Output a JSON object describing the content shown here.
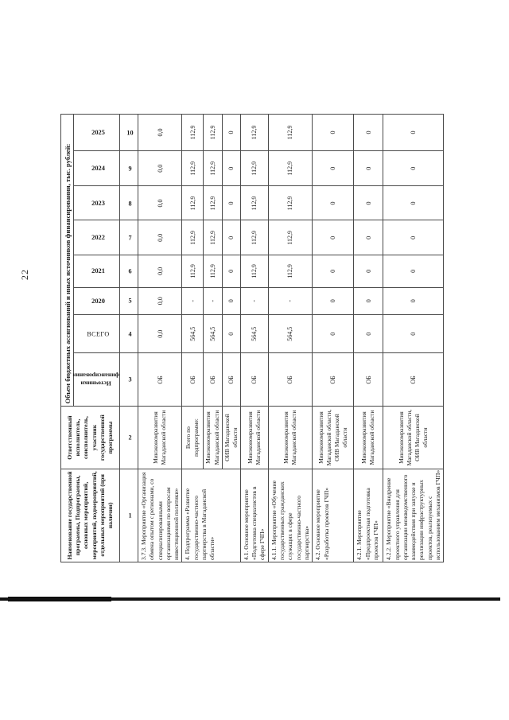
{
  "page": {
    "number": "22"
  },
  "table": {
    "financing_header": "Объем бюджетных ассигнований и иных источников финансирования, тыс. рублей:",
    "col1_header": "Наименование государственной программы, Подпрограммы, основных мероприятий, мероприятий, подмероприятий, отдельных мероприятий (при наличии)",
    "col2_header": "Ответственный исполнитель, соисполнитель, участник государственной программы",
    "col3_header": "Источники финансирования",
    "col4_header": "ВСЕГО",
    "years": [
      "2020",
      "2021",
      "2022",
      "2023",
      "2024",
      "2025"
    ],
    "column_numbers": [
      "1",
      "2",
      "3",
      "4",
      "5",
      "6",
      "7",
      "8",
      "9",
      "10"
    ],
    "rows": [
      {
        "name": "3.7.3. Мероприятие «Организация обмена опытом с регионами, со специализированными организациями по вопросам инвестиционной политики»",
        "name_rowspan": 1,
        "executor": "Минэкономразвития Магаданской области",
        "source": "ОБ",
        "total": "0,0",
        "values": [
          "0,0",
          "0,0",
          "0,0",
          "0,0",
          "0,0",
          "0,0"
        ]
      },
      {
        "name": "4. Подпрограмма «Развитие государственно-частного партнерства в Магаданской области»",
        "name_rowspan": 3,
        "executor": "Всего по подпрограмме:",
        "source": "ОБ",
        "total": "564,5",
        "values": [
          "-",
          "112,9",
          "112,9",
          "112,9",
          "112,9",
          "112,9"
        ]
      },
      {
        "name": null,
        "executor": "Минэкономразвития Магаданской области",
        "source": "ОБ",
        "total": "564,5",
        "values": [
          "-",
          "112,9",
          "112,9",
          "112,9",
          "112,9",
          "112,9"
        ]
      },
      {
        "name": null,
        "executor": "ОИВ Магаданской области",
        "source": "ОБ",
        "total": "0",
        "values": [
          "0",
          "0",
          "0",
          "0",
          "0",
          "0"
        ]
      },
      {
        "name": "4.1. Основное мероприятие «Подготовка специалистов в сфере ГЧП»",
        "name_rowspan": 1,
        "executor": "Минэкономразвития Магаданской области",
        "source": "ОБ",
        "total": "564,5",
        "values": [
          "-",
          "112,9",
          "112,9",
          "112,9",
          "112,9",
          "112,9"
        ]
      },
      {
        "name": "4.1.1. Мероприятие «Обучение государственных гражданских служащих в сфере государственно-частного партнерства»",
        "name_rowspan": 1,
        "executor": "Минэкономразвития Магаданской области",
        "source": "ОБ",
        "total": "564,5",
        "values": [
          "-",
          "112,9",
          "112,9",
          "112,9",
          "112,9",
          "112,9"
        ]
      },
      {
        "name": "4.2. Основное мероприятие «Разработка проектов ГЧП»",
        "name_rowspan": 1,
        "executor": "Минэкономразвития Магаданской области, ОИВ Магаданской области",
        "source": "ОБ",
        "total": "0",
        "values": [
          "0",
          "0",
          "0",
          "0",
          "0",
          "0"
        ]
      },
      {
        "name": "4.2.1. Мероприятие «Предпроектная подготовка проектов ГЧП»",
        "name_rowspan": 1,
        "executor": "Минэкономразвития Магаданской области",
        "source": "ОБ",
        "total": "0",
        "values": [
          "0",
          "0",
          "0",
          "0",
          "0",
          "0"
        ]
      },
      {
        "name": "4.2.2. Мероприятие «Внедрение проектного управления для организации межведомственного взаимодействия при запуске и реализации инфраструктурных проектов, реализуемых с использованием механизмов ГЧП»",
        "name_rowspan": 1,
        "executor": "Минэкономразвития Магаданской области, ОИВ Магаданской области",
        "source": "ОБ",
        "total": "0",
        "values": [
          "0",
          "0",
          "0",
          "0",
          "0",
          "0"
        ]
      }
    ]
  }
}
